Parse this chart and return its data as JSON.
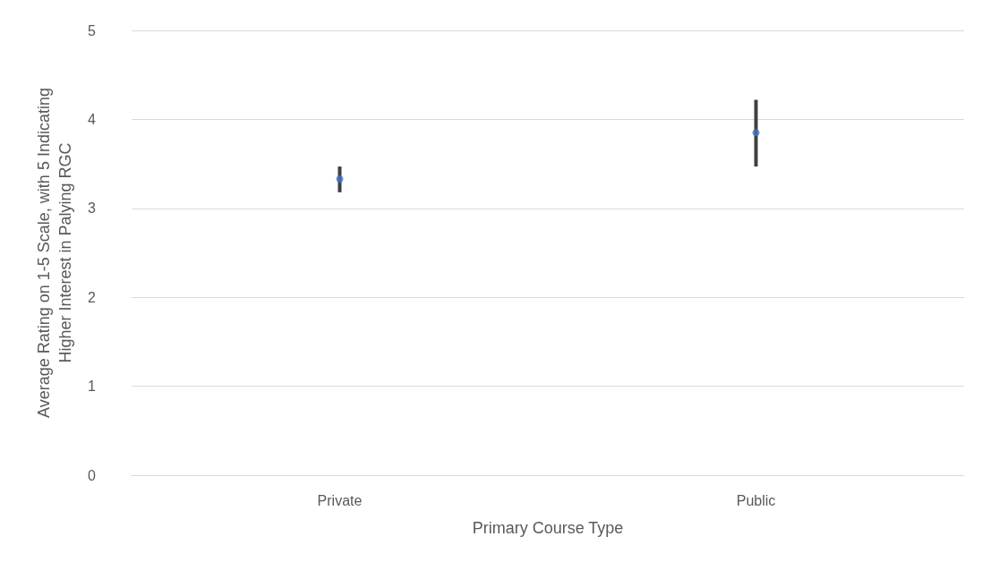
{
  "chart_data": {
    "type": "scatter",
    "xlabel": "Primary Course Type",
    "ylabel": "Average Rating on 1-5 Scale, with 5 Indicating\nHigher Interest in Palying RGC",
    "categories": [
      "Private",
      "Public"
    ],
    "series": [
      {
        "color": "#4472c4",
        "values": [
          3.33,
          3.85
        ],
        "errors": [
          [
            3.18,
            3.47
          ],
          [
            3.47,
            4.22
          ]
        ]
      }
    ],
    "ylim": [
      0,
      5
    ],
    "yticks": [
      0,
      1,
      2,
      3,
      4,
      5
    ],
    "grid": "y",
    "marker": "circle"
  }
}
